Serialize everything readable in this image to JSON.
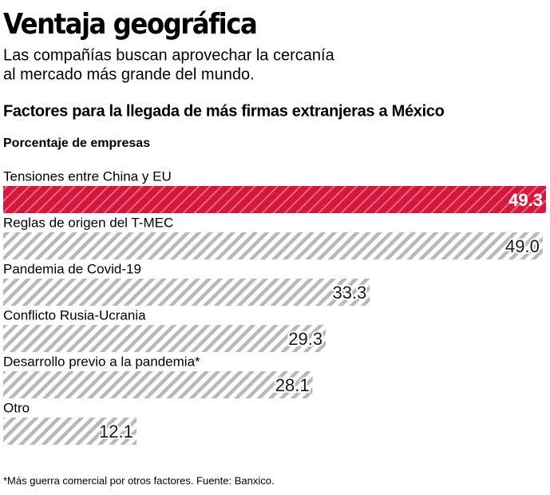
{
  "chart_data": {
    "type": "bar",
    "orientation": "horizontal",
    "title": "Ventaja geográfica",
    "subtitle": [
      "Las compañías buscan aprovechar la cercanía",
      "al mercado más grande del mundo."
    ],
    "chart_title": "Factores para la llegada de más firmas extranjeras a México",
    "value_axis_label": "Porcentaje de empresas",
    "categories": [
      "Tensiones entre China y EU",
      "Reglas de origen del T-MEC",
      "Pandemia de Covid-19",
      "Conflicto Rusia-Ucrania",
      "Desarrollo previo a la pandemia*",
      "Otro"
    ],
    "values": [
      49.3,
      49.0,
      33.3,
      29.3,
      28.1,
      12.1
    ],
    "value_labels": [
      "49.3",
      "49.0",
      "33.3",
      "29.3",
      "28.1",
      "12.1"
    ],
    "colors": [
      "#d6173d",
      "#b8b8b8",
      "#b8b8b8",
      "#b8b8b8",
      "#b8b8b8",
      "#b8b8b8"
    ],
    "footnote": "*Más guerra comercial por otros factores. Fuente: Banxico."
  }
}
